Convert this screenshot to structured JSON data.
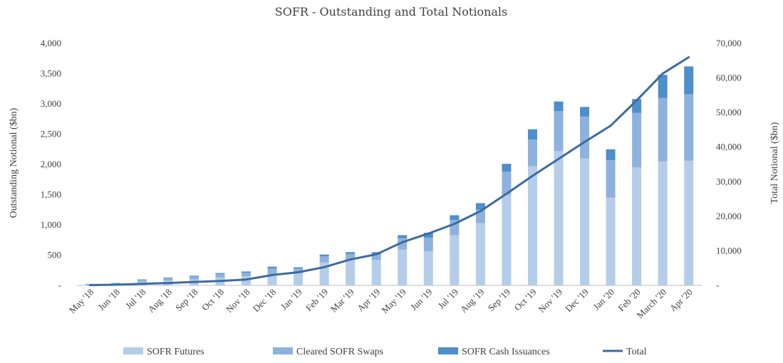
{
  "chart_data": {
    "type": "bar",
    "title": "SOFR - Outstanding and Total Notionals",
    "categories": [
      "May '18",
      "Jun '18",
      "Jul '18",
      "Aug '18",
      "Sep '18",
      "Oct '18",
      "Nov '18",
      "Dec '18",
      "Jan '19",
      "Feb '19",
      "Mar '19",
      "Apr '19",
      "May '19",
      "Jun '19",
      "Jul '19",
      "Aug '19",
      "Sep '19",
      "Oct '19",
      "Nov '19",
      "Dec '19",
      "Jan '20",
      "Feb '20",
      "March '20",
      "Apr '20"
    ],
    "ylabel_left": "Outstanding Notional ($bn)",
    "ylabel_right": "Total Notional ($bn)",
    "ylim_left": [
      0,
      4000
    ],
    "ylim_right": [
      0,
      70000
    ],
    "yticks_left": [
      "-",
      "500",
      "1,000",
      "1,500",
      "2,000",
      "2,500",
      "3,000",
      "3,500",
      "4,000"
    ],
    "yticks_right": [
      "-",
      "10,000",
      "20,000",
      "30,000",
      "40,000",
      "50,000",
      "60,000",
      "70,000"
    ],
    "stacked": true,
    "series": [
      {
        "name": "SOFR Futures",
        "axis": "left",
        "color": "#b4cde9",
        "values": [
          10,
          20,
          60,
          80,
          100,
          130,
          150,
          180,
          200,
          380,
          420,
          420,
          590,
          570,
          830,
          1030,
          1500,
          1970,
          2220,
          2100,
          1450,
          1950,
          2050,
          2060
        ]
      },
      {
        "name": "Cleared SOFR Swaps",
        "axis": "left",
        "color": "#8db2dd",
        "values": [
          10,
          15,
          30,
          40,
          45,
          60,
          60,
          100,
          80,
          100,
          100,
          90,
          190,
          220,
          250,
          220,
          380,
          440,
          660,
          690,
          620,
          900,
          1050,
          1100
        ]
      },
      {
        "name": "SOFR Cash Issuances",
        "axis": "left",
        "color": "#4d8fcc",
        "values": [
          5,
          5,
          10,
          10,
          15,
          15,
          20,
          30,
          20,
          30,
          30,
          40,
          50,
          80,
          80,
          110,
          130,
          170,
          160,
          160,
          180,
          230,
          380,
          460
        ]
      },
      {
        "name": "Total",
        "axis": "right",
        "type": "line",
        "color": "#3d6b9e",
        "values": [
          100,
          200,
          450,
          700,
          1000,
          1300,
          1700,
          3000,
          3800,
          5300,
          7500,
          9000,
          12500,
          15000,
          17800,
          21500,
          26500,
          31700,
          36600,
          41500,
          46200,
          53500,
          61300,
          66000
        ]
      }
    ],
    "legend_position": "bottom",
    "grid": false
  }
}
